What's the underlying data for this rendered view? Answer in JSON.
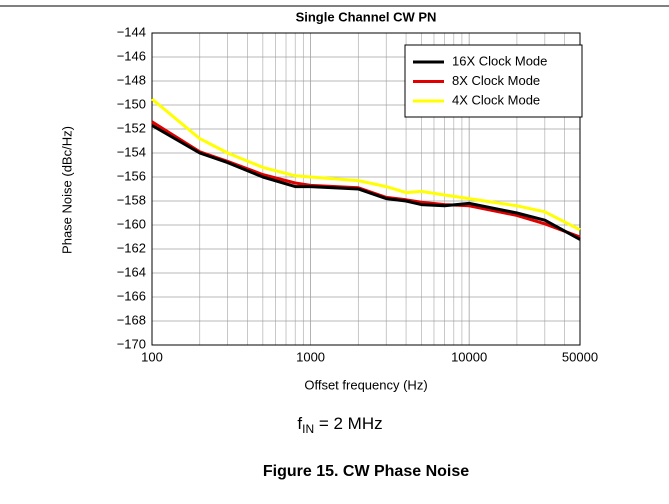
{
  "chart_data": {
    "type": "line",
    "title": "Single Channel  CW PN",
    "xlabel": "Offset frequency (Hz)",
    "ylabel": "Phase Noise (dBc/Hz)",
    "xscale": "log",
    "grid": true,
    "legend": "upper right",
    "x": [
      100,
      200,
      300,
      500,
      800,
      1000,
      2000,
      3000,
      4000,
      5000,
      7000,
      10000,
      20000,
      30000,
      50000
    ],
    "series": [
      {
        "name": "16X Clock Mode",
        "color": "#000000",
        "values": [
          -151.7,
          -154,
          -154.8,
          -156,
          -156.8,
          -156.8,
          -157,
          -157.8,
          -158,
          -158.3,
          -158.4,
          -158.2,
          -159,
          -159.6,
          -161.2
        ]
      },
      {
        "name": "8X Clock Mode",
        "color": "#e00000",
        "values": [
          -151.4,
          -153.9,
          -154.7,
          -155.8,
          -156.5,
          -156.7,
          -156.9,
          -157.7,
          -157.9,
          -158.1,
          -158.3,
          -158.4,
          -159.2,
          -159.9,
          -161
        ]
      },
      {
        "name": "4X Clock Mode",
        "color": "#ffff00",
        "values": [
          -149.5,
          -152.8,
          -154,
          -155.2,
          -155.9,
          -156,
          -156.3,
          -156.8,
          -157.3,
          -157.2,
          -157.5,
          -157.8,
          -158.4,
          -158.9,
          -160.4
        ]
      }
    ],
    "xlim": [
      100,
      50000
    ],
    "xticks": [
      100,
      1000,
      10000,
      50000
    ],
    "ylim": [
      -170,
      -144
    ],
    "yticks": [
      {
        "value": -170,
        "label": "−170"
      },
      {
        "value": -168,
        "label": "−168"
      },
      {
        "value": -166,
        "label": "−166"
      },
      {
        "value": -164,
        "label": "−164"
      },
      {
        "value": -162,
        "label": "−162"
      },
      {
        "value": -160,
        "label": "−160"
      },
      {
        "value": -158,
        "label": "−158"
      },
      {
        "value": -156,
        "label": "−156"
      },
      {
        "value": -154,
        "label": "−154"
      },
      {
        "value": -152,
        "label": "−152"
      },
      {
        "value": -150,
        "label": "−150"
      },
      {
        "value": -148,
        "label": "−148"
      },
      {
        "value": -146,
        "label": "−146"
      },
      {
        "value": -144,
        "label": "−144"
      }
    ],
    "annotation": {
      "base": "f",
      "sub": "IN",
      "rest": " = 2 MHz"
    },
    "caption": "Figure 15. CW Phase Noise"
  }
}
